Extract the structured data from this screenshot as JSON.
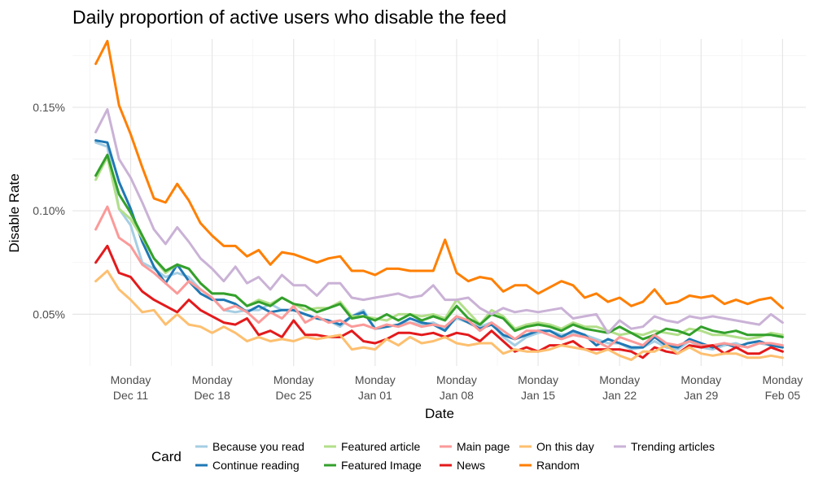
{
  "chart_data": {
    "type": "line",
    "title": "Daily proportion of active users who disable the feed",
    "xlabel": "Date",
    "ylabel": "Disable Rate",
    "ylim": [
      0.025,
      0.183
    ],
    "x_range": [
      "2017-12-06",
      "2018-02-07"
    ],
    "grid": true,
    "legend_title": "Card",
    "legend_position": "bottom",
    "x_ticks": [
      {
        "date": "2017-12-11",
        "line1": "Monday",
        "line2": "Dec 11"
      },
      {
        "date": "2017-12-18",
        "line1": "Monday",
        "line2": "Dec 18"
      },
      {
        "date": "2017-12-25",
        "line1": "Monday",
        "line2": "Dec 25"
      },
      {
        "date": "2018-01-01",
        "line1": "Monday",
        "line2": "Jan 01"
      },
      {
        "date": "2018-01-08",
        "line1": "Monday",
        "line2": "Jan 08"
      },
      {
        "date": "2018-01-15",
        "line1": "Monday",
        "line2": "Jan 15"
      },
      {
        "date": "2018-01-22",
        "line1": "Monday",
        "line2": "Jan 22"
      },
      {
        "date": "2018-01-29",
        "line1": "Monday",
        "line2": "Jan 29"
      },
      {
        "date": "2018-02-05",
        "line1": "Monday",
        "line2": "Feb 05"
      }
    ],
    "y_ticks": [
      {
        "value": 0.05,
        "label": "0.05%"
      },
      {
        "value": 0.1,
        "label": "0.10%"
      },
      {
        "value": 0.15,
        "label": "0.15%"
      }
    ],
    "x": [
      "2017-12-08",
      "2017-12-09",
      "2017-12-10",
      "2017-12-11",
      "2017-12-12",
      "2017-12-13",
      "2017-12-14",
      "2017-12-15",
      "2017-12-16",
      "2017-12-17",
      "2017-12-18",
      "2017-12-19",
      "2017-12-20",
      "2017-12-21",
      "2017-12-22",
      "2017-12-23",
      "2017-12-24",
      "2017-12-25",
      "2017-12-26",
      "2017-12-27",
      "2017-12-28",
      "2017-12-29",
      "2017-12-30",
      "2017-12-31",
      "2018-01-01",
      "2018-01-02",
      "2018-01-03",
      "2018-01-04",
      "2018-01-05",
      "2018-01-06",
      "2018-01-07",
      "2018-01-08",
      "2018-01-09",
      "2018-01-10",
      "2018-01-11",
      "2018-01-12",
      "2018-01-13",
      "2018-01-14",
      "2018-01-15",
      "2018-01-16",
      "2018-01-17",
      "2018-01-18",
      "2018-01-19",
      "2018-01-20",
      "2018-01-21",
      "2018-01-22",
      "2018-01-23",
      "2018-01-24",
      "2018-01-25",
      "2018-01-26",
      "2018-01-27",
      "2018-01-28",
      "2018-01-29",
      "2018-01-30",
      "2018-01-31",
      "2018-02-01",
      "2018-02-02",
      "2018-02-03",
      "2018-02-04",
      "2018-02-05"
    ],
    "series": [
      {
        "name": "Because you read",
        "color": "#a6cee3",
        "values": [
          0.133,
          0.131,
          0.101,
          0.093,
          0.075,
          0.072,
          0.068,
          0.07,
          0.068,
          0.062,
          0.058,
          0.052,
          0.051,
          0.052,
          0.052,
          0.055,
          0.052,
          0.052,
          0.05,
          0.048,
          0.047,
          0.044,
          0.049,
          0.052,
          0.043,
          0.044,
          0.045,
          0.046,
          0.045,
          0.046,
          0.043,
          0.048,
          0.046,
          0.044,
          0.046,
          0.039,
          0.035,
          0.039,
          0.041,
          0.042,
          0.04,
          0.041,
          0.04,
          0.038,
          0.036,
          0.036,
          0.033,
          0.034,
          0.037,
          0.034,
          0.033,
          0.037,
          0.034,
          0.033,
          0.035,
          0.036,
          0.034,
          0.036,
          0.035,
          0.034
        ]
      },
      {
        "name": "Continue reading",
        "color": "#1f78b4",
        "values": [
          0.134,
          0.133,
          0.114,
          0.101,
          0.085,
          0.073,
          0.065,
          0.074,
          0.066,
          0.06,
          0.057,
          0.057,
          0.055,
          0.051,
          0.054,
          0.051,
          0.052,
          0.052,
          0.05,
          0.048,
          0.047,
          0.045,
          0.049,
          0.051,
          0.043,
          0.044,
          0.045,
          0.048,
          0.046,
          0.045,
          0.042,
          0.049,
          0.046,
          0.043,
          0.045,
          0.04,
          0.038,
          0.04,
          0.042,
          0.042,
          0.039,
          0.042,
          0.04,
          0.035,
          0.038,
          0.036,
          0.034,
          0.034,
          0.039,
          0.035,
          0.034,
          0.038,
          0.036,
          0.034,
          0.036,
          0.034,
          0.036,
          0.037,
          0.035,
          0.034
        ]
      },
      {
        "name": "Featured article",
        "color": "#b2df8a",
        "values": [
          0.115,
          0.126,
          0.101,
          0.096,
          0.087,
          0.077,
          0.07,
          0.074,
          0.072,
          0.065,
          0.06,
          0.06,
          0.059,
          0.054,
          0.057,
          0.055,
          0.058,
          0.055,
          0.052,
          0.053,
          0.053,
          0.056,
          0.049,
          0.049,
          0.048,
          0.047,
          0.05,
          0.05,
          0.049,
          0.05,
          0.048,
          0.057,
          0.051,
          0.045,
          0.052,
          0.049,
          0.043,
          0.045,
          0.046,
          0.045,
          0.043,
          0.046,
          0.044,
          0.044,
          0.042,
          0.04,
          0.041,
          0.04,
          0.042,
          0.041,
          0.04,
          0.043,
          0.042,
          0.04,
          0.04,
          0.039,
          0.038,
          0.039,
          0.041,
          0.04
        ]
      },
      {
        "name": "Featured Image",
        "color": "#33a02c",
        "values": [
          0.117,
          0.127,
          0.108,
          0.099,
          0.088,
          0.077,
          0.071,
          0.074,
          0.072,
          0.065,
          0.06,
          0.06,
          0.059,
          0.054,
          0.056,
          0.054,
          0.058,
          0.055,
          0.054,
          0.051,
          0.053,
          0.055,
          0.048,
          0.049,
          0.047,
          0.05,
          0.047,
          0.05,
          0.047,
          0.049,
          0.047,
          0.054,
          0.048,
          0.045,
          0.05,
          0.048,
          0.042,
          0.044,
          0.045,
          0.044,
          0.042,
          0.045,
          0.043,
          0.042,
          0.041,
          0.044,
          0.041,
          0.038,
          0.04,
          0.043,
          0.042,
          0.04,
          0.044,
          0.042,
          0.041,
          0.042,
          0.04,
          0.04,
          0.04,
          0.039
        ]
      },
      {
        "name": "Main page",
        "color": "#fb9a99",
        "values": [
          0.091,
          0.102,
          0.087,
          0.083,
          0.074,
          0.07,
          0.065,
          0.06,
          0.066,
          0.062,
          0.058,
          0.052,
          0.054,
          0.051,
          0.046,
          0.051,
          0.048,
          0.054,
          0.046,
          0.049,
          0.046,
          0.047,
          0.044,
          0.045,
          0.043,
          0.045,
          0.044,
          0.046,
          0.044,
          0.045,
          0.044,
          0.049,
          0.047,
          0.042,
          0.046,
          0.042,
          0.038,
          0.042,
          0.042,
          0.04,
          0.038,
          0.04,
          0.039,
          0.037,
          0.034,
          0.039,
          0.037,
          0.035,
          0.04,
          0.036,
          0.035,
          0.037,
          0.035,
          0.035,
          0.036,
          0.035,
          0.034,
          0.036,
          0.036,
          0.035
        ]
      },
      {
        "name": "News",
        "color": "#e31a1c",
        "values": [
          0.075,
          0.083,
          0.07,
          0.068,
          0.061,
          0.057,
          0.054,
          0.051,
          0.057,
          0.052,
          0.049,
          0.046,
          0.045,
          0.048,
          0.04,
          0.042,
          0.039,
          0.047,
          0.04,
          0.04,
          0.039,
          0.039,
          0.042,
          0.037,
          0.036,
          0.038,
          0.041,
          0.041,
          0.04,
          0.041,
          0.039,
          0.041,
          0.04,
          0.037,
          0.042,
          0.037,
          0.032,
          0.034,
          0.032,
          0.035,
          0.035,
          0.037,
          0.033,
          0.033,
          0.033,
          0.033,
          0.032,
          0.029,
          0.034,
          0.032,
          0.031,
          0.035,
          0.034,
          0.035,
          0.031,
          0.034,
          0.031,
          0.031,
          0.034,
          0.032
        ]
      },
      {
        "name": "On this day",
        "color": "#fdbf6f",
        "values": [
          0.066,
          0.071,
          0.062,
          0.057,
          0.051,
          0.052,
          0.045,
          0.05,
          0.045,
          0.044,
          0.041,
          0.044,
          0.041,
          0.037,
          0.039,
          0.037,
          0.038,
          0.037,
          0.039,
          0.038,
          0.039,
          0.04,
          0.033,
          0.034,
          0.033,
          0.038,
          0.035,
          0.039,
          0.036,
          0.037,
          0.039,
          0.036,
          0.035,
          0.036,
          0.036,
          0.031,
          0.033,
          0.032,
          0.032,
          0.033,
          0.035,
          0.034,
          0.033,
          0.031,
          0.033,
          0.03,
          0.028,
          0.032,
          0.032,
          0.035,
          0.031,
          0.034,
          0.031,
          0.03,
          0.031,
          0.031,
          0.029,
          0.029,
          0.03,
          0.029
        ]
      },
      {
        "name": "Random",
        "color": "#ff7f00",
        "values": [
          0.171,
          0.182,
          0.151,
          0.137,
          0.121,
          0.106,
          0.104,
          0.113,
          0.105,
          0.094,
          0.088,
          0.083,
          0.083,
          0.078,
          0.081,
          0.074,
          0.08,
          0.079,
          0.077,
          0.075,
          0.077,
          0.078,
          0.071,
          0.071,
          0.069,
          0.072,
          0.072,
          0.071,
          0.071,
          0.071,
          0.086,
          0.07,
          0.066,
          0.068,
          0.067,
          0.061,
          0.064,
          0.064,
          0.06,
          0.063,
          0.066,
          0.064,
          0.058,
          0.06,
          0.056,
          0.058,
          0.054,
          0.056,
          0.062,
          0.055,
          0.056,
          0.059,
          0.058,
          0.059,
          0.055,
          0.057,
          0.055,
          0.057,
          0.058,
          0.053
        ]
      },
      {
        "name": "Trending articles",
        "color": "#cab2d6",
        "values": [
          0.138,
          0.149,
          0.125,
          0.116,
          0.104,
          0.091,
          0.084,
          0.092,
          0.085,
          0.077,
          0.072,
          0.066,
          0.073,
          0.065,
          0.068,
          0.062,
          0.069,
          0.064,
          0.064,
          0.059,
          0.065,
          0.065,
          0.058,
          0.057,
          0.058,
          0.059,
          0.06,
          0.058,
          0.059,
          0.064,
          0.057,
          0.057,
          0.058,
          0.053,
          0.05,
          0.053,
          0.051,
          0.052,
          0.051,
          0.052,
          0.053,
          0.048,
          0.049,
          0.05,
          0.041,
          0.047,
          0.043,
          0.044,
          0.049,
          0.047,
          0.046,
          0.049,
          0.048,
          0.049,
          0.048,
          0.047,
          0.046,
          0.045,
          0.05,
          0.046
        ]
      }
    ]
  }
}
